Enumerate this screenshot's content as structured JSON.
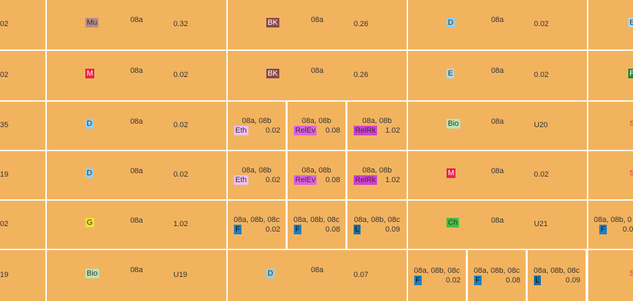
{
  "colors": {
    "cell_bg": "#f2b35f",
    "Mu": "#b98a8a",
    "BK": "#8a4a4a",
    "D": "#8ecff0",
    "M": "#e8224c",
    "E": "#a8d8f0",
    "Eth": "#f0c0f0",
    "RelEv": "#e060e0",
    "RelRk": "#d040d0",
    "Bio": "#b6e6b6",
    "G": "#f0e030",
    "Ch": "#40c040",
    "F": "#2080c0",
    "L": "#1e6a9a"
  },
  "rows": [
    {
      "left_edge": "02",
      "c1": {
        "cls": "08a",
        "subj": "Mu",
        "room": "0.32"
      },
      "c2": {
        "cls": "08a",
        "subj": "BK",
        "room": "0.26"
      },
      "c3": {
        "cls": "08a",
        "subj": "D",
        "room": "0.02"
      },
      "c4": {
        "subj": "E"
      }
    },
    {
      "left_edge": "02",
      "c1": {
        "cls": "08a",
        "subj": "M",
        "room": "0.02"
      },
      "c2": {
        "cls": "08a",
        "subj": "BK",
        "room": "0.26"
      },
      "c3": {
        "cls": "08a",
        "subj": "E",
        "room": "0.02"
      },
      "c4": {
        "subj": "P"
      }
    },
    {
      "left_edge": "35",
      "c1": {
        "cls": "08a",
        "subj": "D",
        "room": "0.02"
      },
      "c2a": {
        "cls": "08a, 08b",
        "subj": "Eth",
        "room": "0.02"
      },
      "c2b": {
        "cls": "08a, 08b",
        "subj": "RelEv",
        "room": "0.08"
      },
      "c2c": {
        "cls": "08a, 08b",
        "subj": "RelRk",
        "room": "1.02"
      },
      "c3": {
        "cls": "08a",
        "subj": "Bio",
        "room": "U20"
      },
      "c4": {
        "subj": "Sp"
      }
    },
    {
      "left_edge": "19",
      "c1": {
        "cls": "08a",
        "subj": "D",
        "room": "0.02"
      },
      "c2a": {
        "cls": "08a, 08b",
        "subj": "Eth",
        "room": "0.02"
      },
      "c2b": {
        "cls": "08a, 08b",
        "subj": "RelEv",
        "room": "0.08"
      },
      "c2c": {
        "cls": "08a, 08b",
        "subj": "RelRk",
        "room": "1.02"
      },
      "c3": {
        "cls": "08a",
        "subj": "M",
        "room": "0.02"
      },
      "c4": {
        "subj": "Sp"
      }
    },
    {
      "left_edge": "02",
      "c1": {
        "cls": "08a",
        "subj": "G",
        "room": "1.02"
      },
      "c2a": {
        "cls": "08a, 08b, 08c",
        "subj": "F",
        "room": "0.02"
      },
      "c2b": {
        "cls": "08a, 08b, 08c",
        "subj": "F",
        "room": "0.08"
      },
      "c2c": {
        "cls": "08a, 08b, 08c",
        "subj": "L",
        "room": "0.09"
      },
      "c3": {
        "cls": "08a",
        "subj": "Ch",
        "room": "U21"
      },
      "c4": {
        "cls": "08a, 08b, 0",
        "subj": "F",
        "room": "0.0"
      }
    },
    {
      "left_edge": "19",
      "c1": {
        "cls": "08a",
        "subj": "Bio",
        "room": "U19"
      },
      "c2": {
        "cls": "08a",
        "subj": "D",
        "room": "0.07"
      },
      "c3a": {
        "cls": "08a, 08b, 08c",
        "subj": "F",
        "room": "0.02"
      },
      "c3b": {
        "cls": "08a, 08b, 08c",
        "subj": "F",
        "room": "0.08"
      },
      "c3c": {
        "cls": "08a, 08b, 08c",
        "subj": "L",
        "room": "0.09"
      },
      "c4": {
        "subj": "Sp"
      }
    }
  ]
}
